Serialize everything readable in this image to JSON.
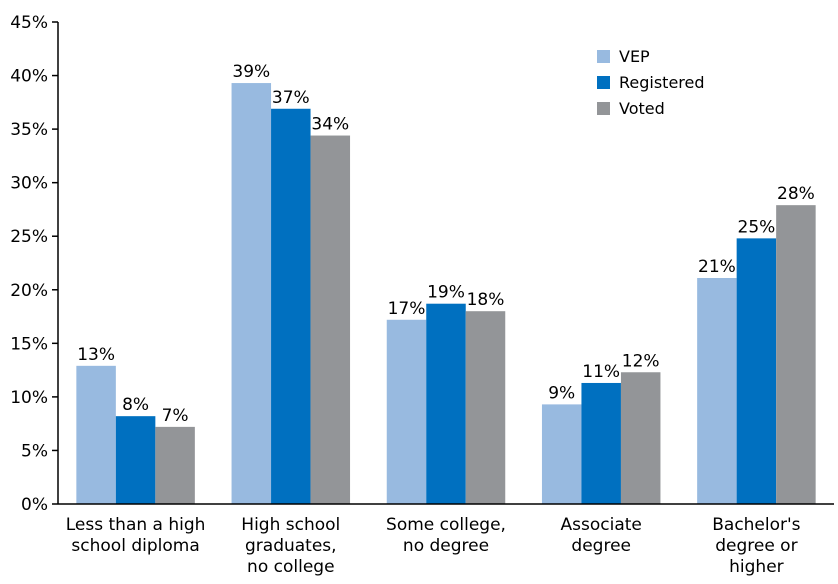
{
  "chart_data": {
    "type": "bar",
    "title": "",
    "xlabel": "",
    "ylabel": "",
    "ylim": [
      0,
      45
    ],
    "y_ticks": [
      "0%",
      "5%",
      "10%",
      "15%",
      "20%",
      "25%",
      "30%",
      "35%",
      "40%",
      "45%"
    ],
    "grid": false,
    "legend_position": "top-right",
    "categories": [
      [
        "Less than a high",
        "school diploma"
      ],
      [
        "High school",
        "graduates,",
        "no college"
      ],
      [
        "Some college,",
        "no degree"
      ],
      [
        "Associate",
        "degree"
      ],
      [
        "Bachelor's",
        "degree or",
        "higher"
      ]
    ],
    "series": [
      {
        "name": "VEP",
        "color": "#98bae0",
        "values": [
          12.9,
          39.3,
          17.2,
          9.3,
          21.1
        ],
        "labels": [
          "13%",
          "39%",
          "17%",
          "9%",
          "21%"
        ]
      },
      {
        "name": "Registered",
        "color": "#0070c0",
        "values": [
          8.2,
          36.9,
          18.7,
          11.3,
          24.8
        ],
        "labels": [
          "8%",
          "37%",
          "19%",
          "11%",
          "25%"
        ]
      },
      {
        "name": "Voted",
        "color": "#939598",
        "values": [
          7.2,
          34.4,
          18.0,
          12.3,
          27.9
        ],
        "labels": [
          "7%",
          "34%",
          "18%",
          "12%",
          "28%"
        ]
      }
    ]
  }
}
